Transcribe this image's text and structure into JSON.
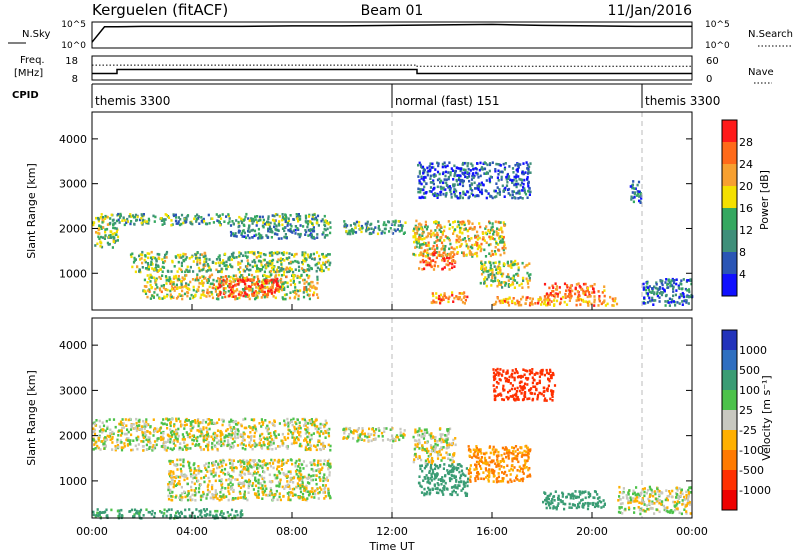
{
  "header": {
    "station": "Kerguelen (fitACF)",
    "beam": "Beam 01",
    "date": "11/Jan/2016"
  },
  "noise_panel": {
    "left_label": "N.Sky",
    "right_label": "N.Search",
    "left_ticks": [
      "10^5",
      "10^0"
    ],
    "right_ticks": [
      "10^5",
      "10^0"
    ]
  },
  "freq_panel": {
    "left_label_line1": "Freq.",
    "left_label_line2": "[MHz]",
    "right_label": "Nave",
    "left_ticks": [
      "18",
      "8"
    ],
    "right_ticks": [
      "60",
      "0"
    ]
  },
  "cpid": {
    "label": "CPID",
    "segments": [
      "themis 3300",
      "normal (fast) 151",
      "themis 3300"
    ],
    "segment_start_hours": [
      0,
      12,
      22
    ]
  },
  "time_axis": {
    "title": "Time UT",
    "ticks": [
      "00:00",
      "04:00",
      "08:00",
      "12:00",
      "16:00",
      "20:00",
      "00:00"
    ]
  },
  "power_panel": {
    "ylabel": "Slant Range [km]",
    "yticks": [
      "4000",
      "3000",
      "2000",
      "1000"
    ],
    "colorbar_title": "Power [dB]",
    "colorbar_ticks": [
      "28",
      "24",
      "20",
      "16",
      "12",
      "8",
      "4"
    ]
  },
  "velocity_panel": {
    "ylabel": "Slant Range [km]",
    "yticks": [
      "4000",
      "3000",
      "2000",
      "1000"
    ],
    "colorbar_title": "Velocity [m s⁻¹]",
    "colorbar_ticks": [
      "1000",
      "500",
      "100",
      "25",
      "-25",
      "-100",
      "-500",
      "-1000"
    ]
  },
  "chart_data": [
    {
      "type": "line",
      "name": "noise",
      "x_hours": [
        0,
        0.5,
        1,
        2,
        4,
        6,
        8,
        10,
        12,
        14,
        16,
        18,
        20,
        22,
        24
      ],
      "sky": [
        1,
        4.2,
        4.2,
        4.3,
        4.3,
        4.3,
        4.4,
        4.4,
        4.5,
        4.6,
        4.7,
        4.5,
        4.4,
        4.3,
        4.3
      ],
      "ylim": [
        0,
        5
      ]
    },
    {
      "type": "line",
      "name": "frequency",
      "x_hours": [
        0,
        1,
        1,
        13,
        13,
        24
      ],
      "freq_mhz": [
        10.5,
        10.5,
        12.3,
        12.3,
        10.5,
        10.5
      ],
      "nave": [
        38,
        38,
        38,
        38,
        35,
        35
      ],
      "freq_lim": [
        8,
        18
      ],
      "nave_lim": [
        0,
        60
      ]
    },
    {
      "type": "heatmap",
      "name": "power",
      "xlim_hours": [
        0,
        24
      ],
      "ylim_km": [
        180,
        4600
      ],
      "zlim_db": [
        0,
        30
      ],
      "features": [
        {
          "t": [
            0.0,
            1.0
          ],
          "r": [
            1600,
            2350
          ],
          "level": 14
        },
        {
          "t": [
            1.0,
            9.5
          ],
          "r": [
            2100,
            2350
          ],
          "level": 12
        },
        {
          "t": [
            5.5,
            9.5
          ],
          "r": [
            1800,
            2100
          ],
          "level": 9
        },
        {
          "t": [
            1.5,
            9.5
          ],
          "r": [
            1050,
            1500
          ],
          "level": 14
        },
        {
          "t": [
            2.0,
            9.0
          ],
          "r": [
            450,
            1000
          ],
          "level": 17
        },
        {
          "t": [
            5.0,
            7.5
          ],
          "r": [
            500,
            900
          ],
          "level": 26
        },
        {
          "t": [
            10.0,
            12.5
          ],
          "r": [
            1900,
            2200
          ],
          "level": 10
        },
        {
          "t": [
            12.8,
            16.5
          ],
          "r": [
            1400,
            2200
          ],
          "level": 18
        },
        {
          "t": [
            13.0,
            14.5
          ],
          "r": [
            1100,
            1500
          ],
          "level": 25
        },
        {
          "t": [
            13.5,
            15.0
          ],
          "r": [
            350,
            600
          ],
          "level": 22
        },
        {
          "t": [
            15.5,
            17.5
          ],
          "r": [
            700,
            1300
          ],
          "level": 16
        },
        {
          "t": [
            16.0,
            21.0
          ],
          "r": [
            300,
            500
          ],
          "level": 21
        },
        {
          "t": [
            18.0,
            20.5
          ],
          "r": [
            500,
            800
          ],
          "level": 24
        },
        {
          "t": [
            13.0,
            17.5
          ],
          "r": [
            2700,
            3500
          ],
          "level": 6
        },
        {
          "t": [
            21.5,
            22.0
          ],
          "r": [
            2600,
            3100
          ],
          "level": 7
        },
        {
          "t": [
            22.0,
            24.0
          ],
          "r": [
            300,
            900
          ],
          "level": 7
        }
      ]
    },
    {
      "type": "heatmap",
      "name": "velocity",
      "xlim_hours": [
        0,
        24
      ],
      "ylim_km": [
        180,
        4600
      ],
      "zlim_ms": [
        -1000,
        1000
      ],
      "features": [
        {
          "t": [
            0.0,
            9.5
          ],
          "r": [
            1700,
            2400
          ],
          "v": 0
        },
        {
          "t": [
            3.0,
            9.5
          ],
          "r": [
            600,
            1500
          ],
          "v": 0
        },
        {
          "t": [
            10.0,
            12.5
          ],
          "r": [
            1900,
            2200
          ],
          "v": 0
        },
        {
          "t": [
            12.8,
            14.5
          ],
          "r": [
            1400,
            2200
          ],
          "v": 0
        },
        {
          "t": [
            13.0,
            15.0
          ],
          "r": [
            700,
            1400
          ],
          "v": 200
        },
        {
          "t": [
            15.0,
            17.5
          ],
          "r": [
            1000,
            1800
          ],
          "v": -120
        },
        {
          "t": [
            16.0,
            18.5
          ],
          "r": [
            2800,
            3500
          ],
          "v": -400
        },
        {
          "t": [
            18.0,
            20.5
          ],
          "r": [
            400,
            800
          ],
          "v": 200
        },
        {
          "t": [
            21.0,
            24.0
          ],
          "r": [
            300,
            900
          ],
          "v": 10
        },
        {
          "t": [
            0.0,
            6.0
          ],
          "r": [
            200,
            400
          ],
          "v": 150
        }
      ]
    }
  ]
}
